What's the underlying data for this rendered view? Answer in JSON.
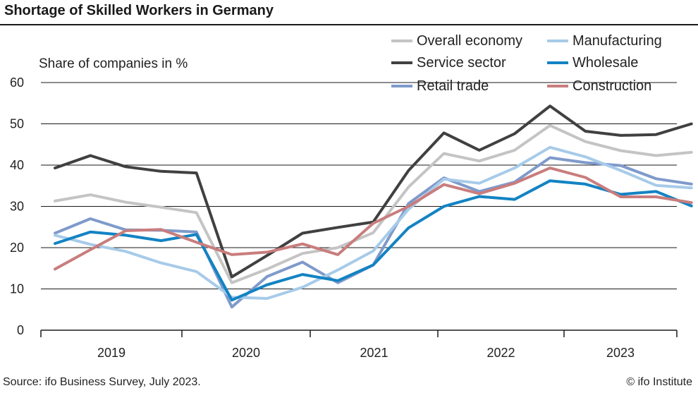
{
  "header": {
    "title": "Shortage of Skilled Workers in Germany",
    "source": "Source: ifo Business Survey, July 2023.",
    "copyright": "© ifo Institute"
  },
  "chart_data": {
    "type": "line",
    "title": "Shortage of Skilled Workers in Germany",
    "ylabel": "Share of companies in %",
    "xlabel": "",
    "ylim": [
      0,
      60
    ],
    "yticks": [
      0,
      10,
      20,
      30,
      40,
      50,
      60
    ],
    "grid": true,
    "legend_position": "top-right",
    "year_labels": [
      "2019",
      "2020",
      "2021",
      "2022",
      "2023"
    ],
    "x": [
      "2019-01",
      "2019-04",
      "2019-07",
      "2019-10",
      "2020-01",
      "2020-04",
      "2020-07",
      "2020-10",
      "2021-01",
      "2021-04",
      "2021-07",
      "2021-10",
      "2022-01",
      "2022-04",
      "2022-07",
      "2022-10",
      "2023-01",
      "2023-04",
      "2023-07"
    ],
    "series": [
      {
        "name": "Overall economy",
        "color": "#c4c4c4",
        "values": [
          31.3,
          32.8,
          31.0,
          29.8,
          28.5,
          11.5,
          14.8,
          18.6,
          20.0,
          23.6,
          34.7,
          42.8,
          41.0,
          43.6,
          49.6,
          45.7,
          43.5,
          42.3,
          43.1
        ]
      },
      {
        "name": "Service sector",
        "color": "#404040",
        "values": [
          39.3,
          42.3,
          39.6,
          38.5,
          38.1,
          12.9,
          18.1,
          23.5,
          24.9,
          26.2,
          38.7,
          47.8,
          43.6,
          47.6,
          54.3,
          48.2,
          47.2,
          47.4,
          50.0
        ]
      },
      {
        "name": "Retail trade",
        "color": "#7f9acb",
        "values": [
          23.5,
          27.0,
          24.3,
          24.2,
          23.8,
          5.6,
          13.0,
          16.5,
          11.5,
          15.8,
          30.7,
          36.9,
          33.6,
          35.9,
          41.8,
          40.6,
          39.9,
          36.7,
          35.4
        ]
      },
      {
        "name": "Manufacturing",
        "color": "#a7cbe9",
        "values": [
          23.0,
          20.8,
          19.1,
          16.3,
          14.2,
          8.0,
          7.7,
          10.4,
          14.6,
          19.2,
          29.3,
          36.6,
          35.6,
          39.3,
          44.3,
          42.0,
          38.7,
          35.1,
          34.5
        ]
      },
      {
        "name": "Wholesale",
        "color": "#1283c3",
        "values": [
          21.0,
          23.8,
          23.0,
          21.7,
          23.2,
          7.3,
          11.0,
          13.5,
          12.0,
          15.8,
          24.8,
          30.0,
          32.4,
          31.7,
          36.2,
          35.4,
          32.9,
          33.6,
          30.1
        ]
      },
      {
        "name": "Construction",
        "color": "#c97d7d",
        "values": [
          14.8,
          19.5,
          24.1,
          24.4,
          21.3,
          18.3,
          18.9,
          20.9,
          18.3,
          25.9,
          30.0,
          35.3,
          33.1,
          35.6,
          39.3,
          37.0,
          32.3,
          32.3,
          30.9
        ]
      }
    ]
  }
}
